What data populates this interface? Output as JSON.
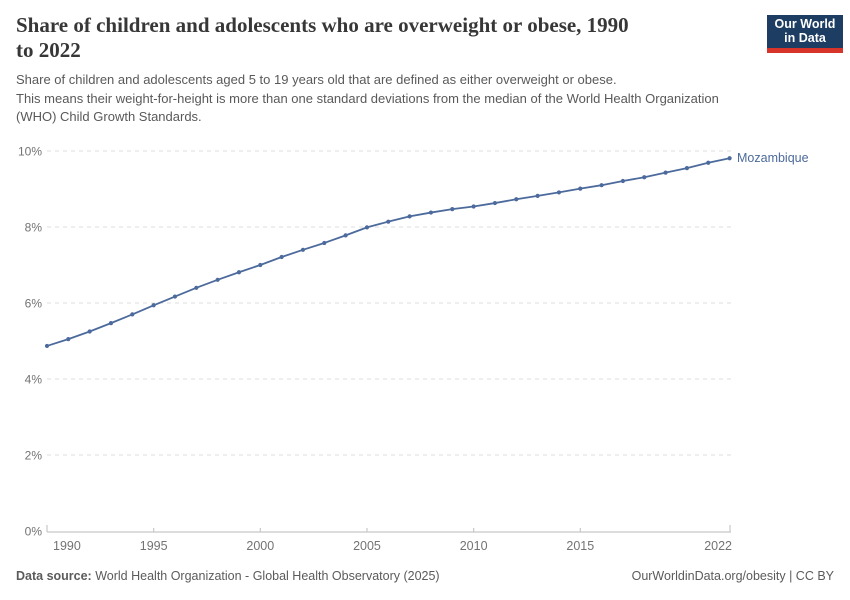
{
  "header": {
    "title_lines": [
      "Share of children and adolescents who are overweight or obese, 1990",
      "to 2022"
    ],
    "subtitle_lines": [
      "Share of children and adolescents aged 5 to 19 years old that are defined as either overweight or obese.",
      "This means their weight-for-height is more than one standard deviations from the median of the World Health Organization",
      "(WHO) Child Growth Standards."
    ],
    "logo": {
      "line1": "Our World",
      "line2": "in Data",
      "bg_color": "#1d3d63",
      "accent_color": "#d8352a"
    }
  },
  "chart_data": {
    "type": "line",
    "title": "Share of children and adolescents who are overweight or obese, 1990 to 2022",
    "x": [
      1990,
      1991,
      1992,
      1993,
      1994,
      1995,
      1996,
      1997,
      1998,
      1999,
      2000,
      2001,
      2002,
      2003,
      2004,
      2005,
      2006,
      2007,
      2008,
      2009,
      2010,
      2011,
      2012,
      2013,
      2014,
      2015,
      2016,
      2017,
      2018,
      2019,
      2020,
      2021,
      2022
    ],
    "series": [
      {
        "name": "Mozambique",
        "color": "#4c6a9c",
        "values": [
          4.87,
          5.05,
          5.25,
          5.47,
          5.7,
          5.94,
          6.17,
          6.4,
          6.61,
          6.81,
          7.0,
          7.21,
          7.4,
          7.58,
          7.78,
          7.99,
          8.14,
          8.28,
          8.38,
          8.47,
          8.54,
          8.63,
          8.73,
          8.82,
          8.91,
          9.01,
          9.1,
          9.21,
          9.31,
          9.43,
          9.55,
          9.69,
          9.81
        ]
      }
    ],
    "x_ticks": [
      1990,
      1995,
      2000,
      2005,
      2010,
      2015,
      2022
    ],
    "y_ticks": [
      0,
      2,
      4,
      6,
      8,
      10
    ],
    "y_tick_suffix": "%",
    "xlim": [
      1990,
      2022
    ],
    "ylim": [
      0,
      10
    ],
    "grid": "horizontal-dashed",
    "legend_position": "end-of-line",
    "colors": {
      "grid": "#dcdcdc",
      "axis": "#c8c8c8",
      "tick_label": "#737373"
    }
  },
  "footer": {
    "source_label": "Data source:",
    "source_value": "World Health Organization - Global Health Observatory (2025)",
    "rights": "OurWorldinData.org/obesity | CC BY"
  }
}
